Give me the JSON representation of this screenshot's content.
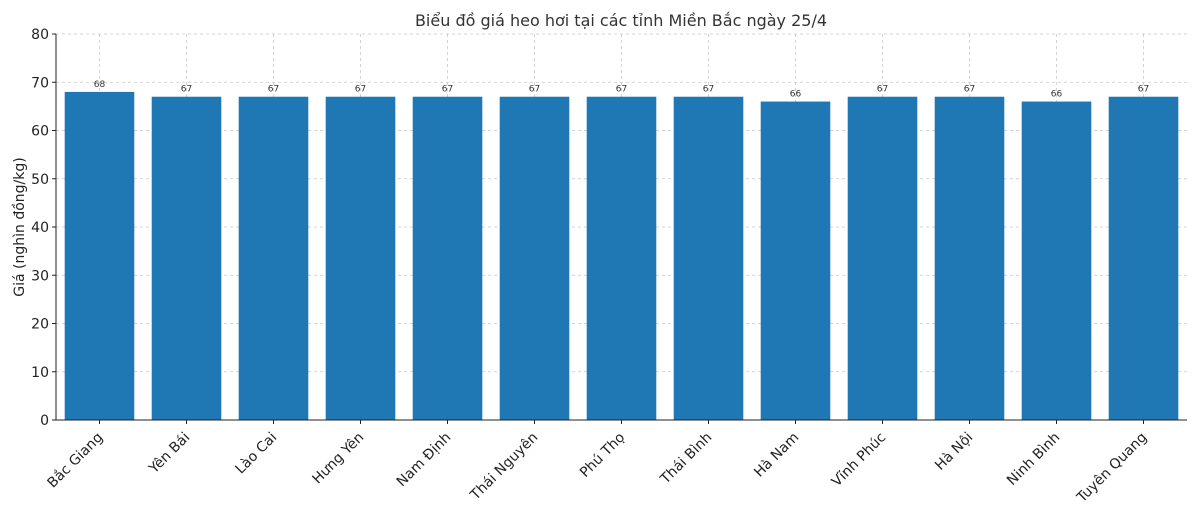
{
  "chart_data": {
    "type": "bar",
    "title": "Biểu đồ giá heo hơi tại các tỉnh Miền Bắc ngày 25/4",
    "xlabel": "",
    "ylabel": "Giá (nghìn đồng/kg)",
    "ylim": [
      0,
      80
    ],
    "yticks": [
      0,
      10,
      20,
      30,
      40,
      50,
      60,
      70,
      80
    ],
    "grid": true,
    "bar_color": "#1f77b4",
    "categories": [
      "Bắc Giang",
      "Yên Bái",
      "Lào Cai",
      "Hưng Yên",
      "Nam Định",
      "Thái Nguyên",
      "Phú Thọ",
      "Thái Bình",
      "Hà Nam",
      "Vĩnh Phúc",
      "Hà Nội",
      "Ninh Bình",
      "Tuyên Quang"
    ],
    "values": [
      68,
      67,
      67,
      67,
      67,
      67,
      67,
      67,
      66,
      67,
      67,
      66,
      67
    ],
    "data_labels": [
      "68",
      "67",
      "67",
      "67",
      "67",
      "67",
      "67",
      "67",
      "66",
      "67",
      "67",
      "66",
      "67"
    ]
  }
}
